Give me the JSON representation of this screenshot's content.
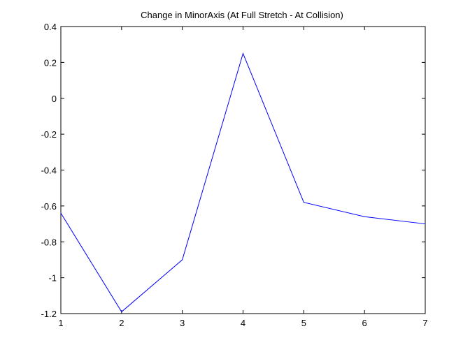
{
  "chart_data": {
    "type": "line",
    "title": "Change in MinorAxis (At Full Stretch - At Collision)",
    "xlabel": "",
    "ylabel": "",
    "x": [
      1,
      2,
      3,
      4,
      5,
      6,
      7
    ],
    "series": [
      {
        "values": [
          -0.64,
          -1.19,
          -0.9,
          0.25,
          -0.58,
          -0.66,
          -0.7
        ],
        "color": "#0000ff"
      }
    ],
    "xlim": [
      1,
      7
    ],
    "ylim": [
      -1.2,
      0.4
    ],
    "xticks": [
      1,
      2,
      3,
      4,
      5,
      6,
      7
    ],
    "xtick_labels": [
      "1",
      "2",
      "3",
      "4",
      "5",
      "6",
      "7"
    ],
    "yticks": [
      0.4,
      0.2,
      0,
      -0.2,
      -0.4,
      -0.6,
      -0.8,
      -1,
      -1.2
    ],
    "ytick_labels": [
      "0.4",
      "0.2",
      "0",
      "-0.2",
      "-0.4",
      "-0.6",
      "-0.8",
      "-1",
      "-1.2"
    ],
    "grid": false,
    "legend": "none"
  }
}
